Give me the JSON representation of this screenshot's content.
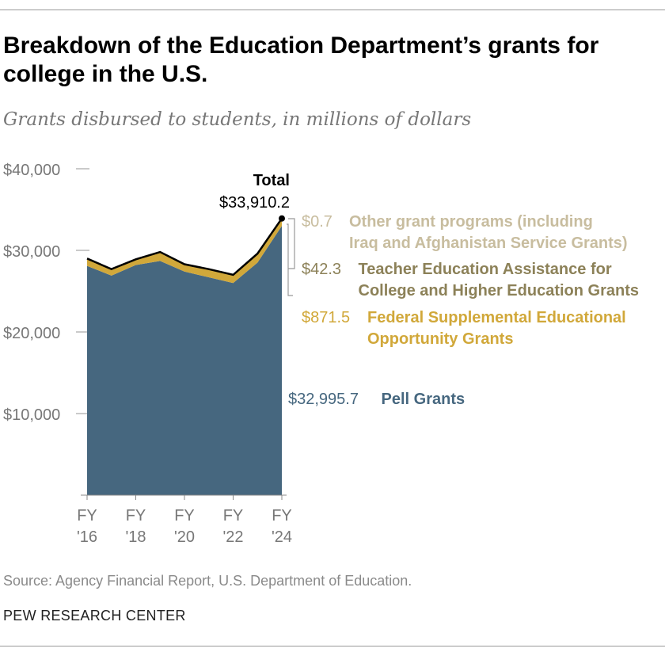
{
  "title": "Breakdown of the Education Department’s grants for college in the U.S.",
  "subtitle": "Grants disbursed to students, in millions of dollars",
  "source": "Source: Agency Financial Report, U.S. Department of Education.",
  "brand": "PEW RESEARCH CENTER",
  "chart_data": {
    "type": "area",
    "stacked": true,
    "x": [
      "FY '16",
      "FY '17",
      "FY '18",
      "FY '19",
      "FY '20",
      "FY '21",
      "FY '22",
      "FY '23",
      "FY '24"
    ],
    "x_tick_labels": [
      [
        "FY",
        "'16"
      ],
      [
        "FY",
        "'18"
      ],
      [
        "FY",
        "'20"
      ],
      [
        "FY",
        "'22"
      ],
      [
        "FY",
        "'24"
      ]
    ],
    "x_tick_positions": [
      0,
      2,
      4,
      6,
      8
    ],
    "ylim": [
      0,
      40000
    ],
    "y_ticks": [
      10000,
      20000,
      30000,
      40000
    ],
    "y_tick_labels": [
      "$10,000",
      "$20,000",
      "$30,000",
      "$40,000"
    ],
    "series": [
      {
        "name": "Pell Grants",
        "color": "#46677f",
        "values": [
          28100,
          26900,
          28200,
          28700,
          27400,
          26700,
          26000,
          28500,
          32995.7
        ],
        "last_label": "$32,995.7"
      },
      {
        "name": "Federal Supplemental Educational Opportunity Grants",
        "color": "#d1a83a",
        "values": [
          800,
          700,
          630,
          1000,
          800,
          900,
          900,
          1000,
          871.5
        ],
        "last_label": "$871.5"
      },
      {
        "name": "Teacher Education Assistance for College and Higher Education Grants",
        "color": "#8c8158",
        "values": [
          90,
          90,
          60,
          90,
          90,
          90,
          90,
          90,
          42.3
        ],
        "last_label": "$42.3"
      },
      {
        "name": "Other grant programs (including Iraq and Afghanistan Service Grants)",
        "color": "#c8bd9f",
        "values": [
          10,
          10,
          10,
          10,
          10,
          10,
          10,
          10,
          0.7
        ],
        "last_label": "$0.7"
      }
    ],
    "total": {
      "label": "Total",
      "value_label": "$33,910.2",
      "values": [
        29000,
        27700,
        28900,
        29800,
        28300,
        27700,
        27000,
        29600,
        33910.2
      ],
      "color": "#000000"
    },
    "label_lines": {
      "other": [
        "Other grant programs (including",
        "Iraq and Afghanistan Service Grants)"
      ],
      "teacher": [
        "Teacher Education Assistance for",
        "College and Higher Education Grants"
      ],
      "fseog": [
        "Federal Supplemental Educational",
        "Opportunity Grants"
      ],
      "pell": [
        "Pell Grants"
      ]
    }
  }
}
